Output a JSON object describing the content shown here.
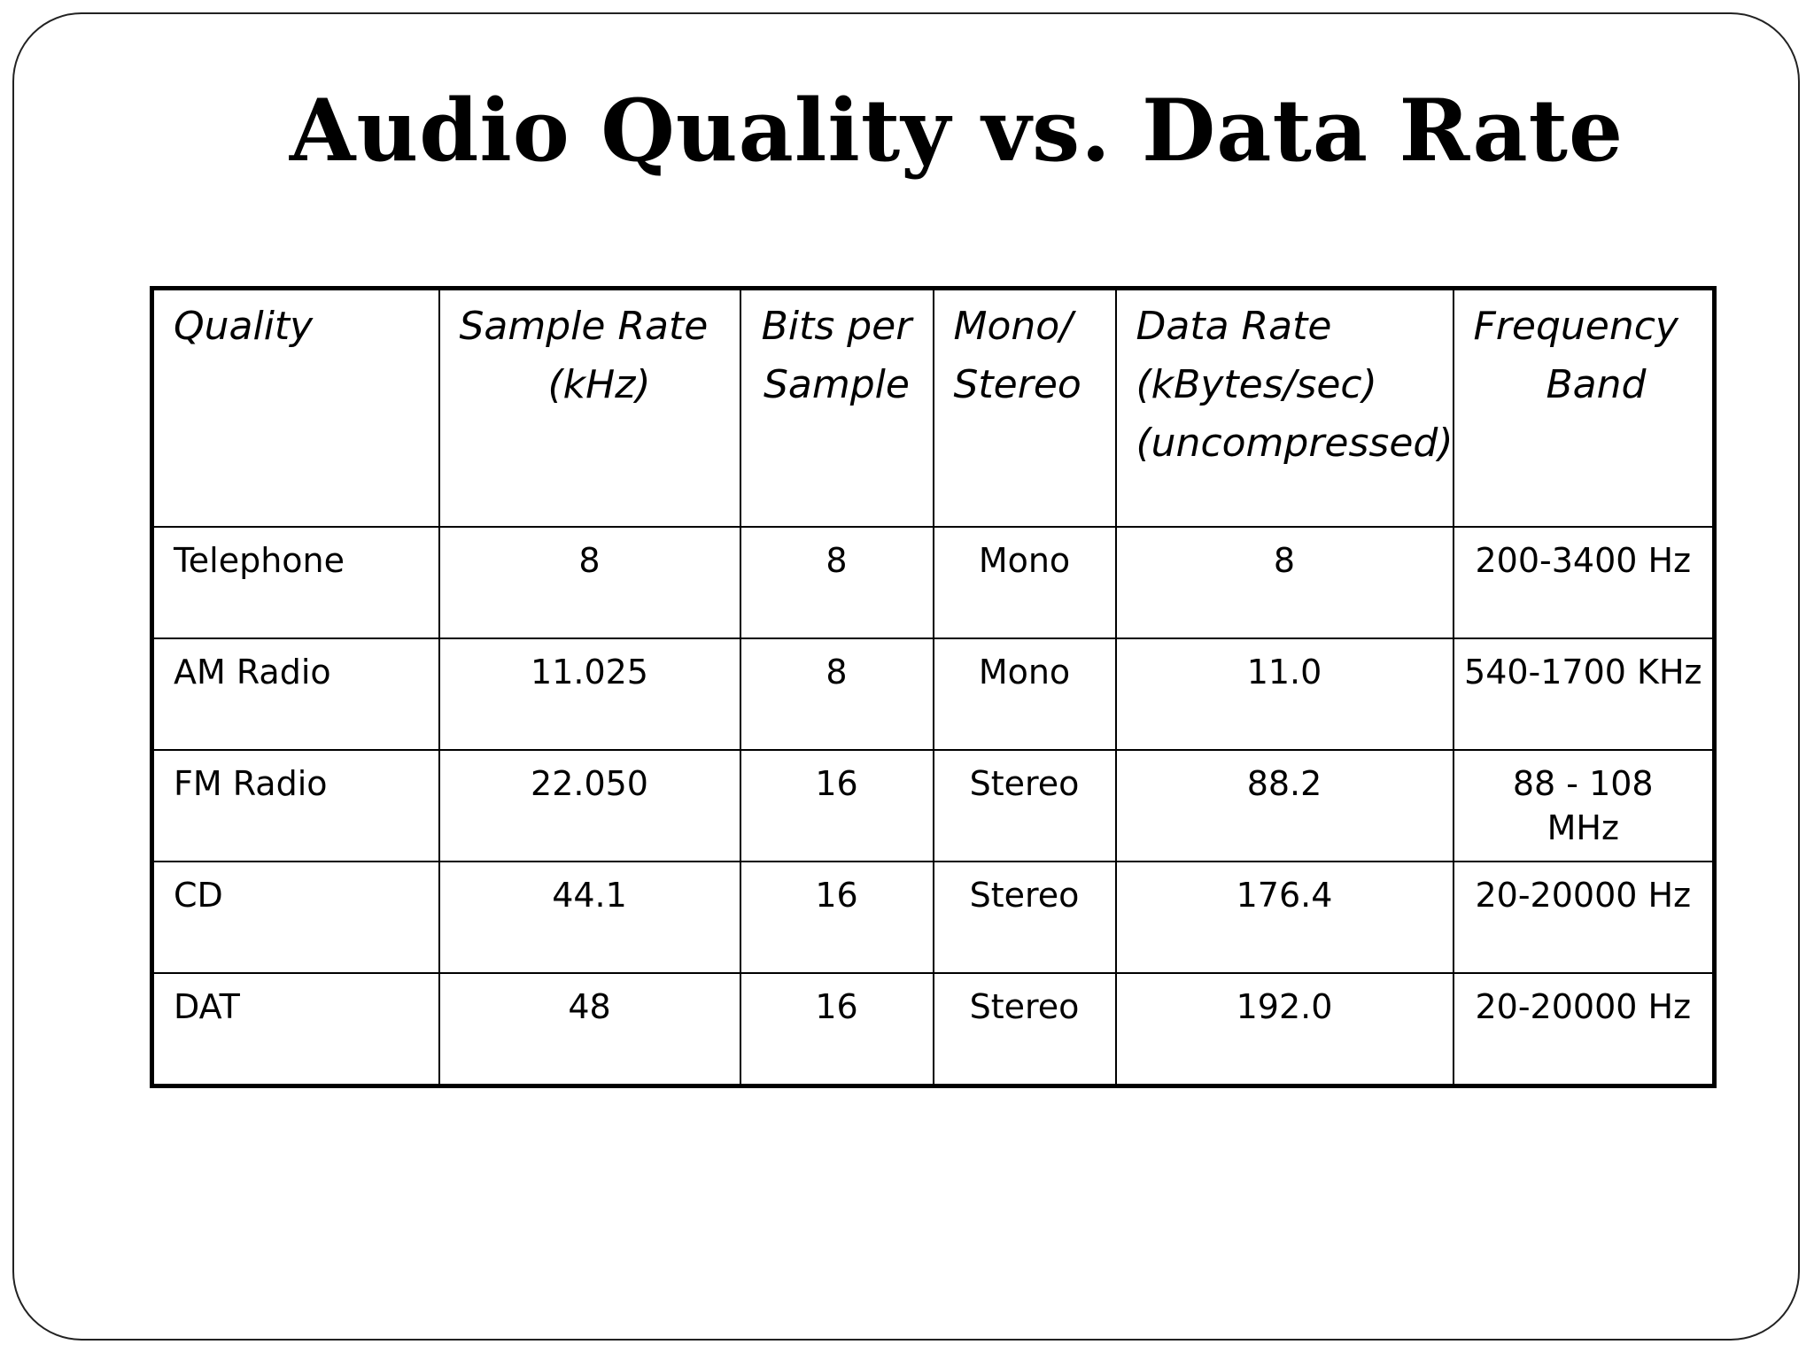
{
  "slide": {
    "title": "Audio Quality vs. Data Rate"
  },
  "table": {
    "headers": [
      {
        "lines": [
          "Quality"
        ]
      },
      {
        "lines": [
          "Sample Rate",
          "(kHz)"
        ]
      },
      {
        "lines": [
          "Bits per",
          "Sample"
        ]
      },
      {
        "lines": [
          "Mono/",
          "Stereo"
        ]
      },
      {
        "lines": [
          "Data Rate",
          "(kBytes/sec)",
          "(uncompressed)"
        ]
      },
      {
        "lines": [
          "Frequency",
          "Band"
        ]
      }
    ],
    "rows": [
      {
        "quality": "Telephone",
        "sample_rate": "8",
        "bits": "8",
        "channels": "Mono",
        "data_rate": "8",
        "band": "200-3400 Hz"
      },
      {
        "quality": "AM Radio",
        "sample_rate": "11.025",
        "bits": "8",
        "channels": "Mono",
        "data_rate": "11.0",
        "band": "540-1700 KHz"
      },
      {
        "quality": "FM Radio",
        "sample_rate": "22.050",
        "bits": "16",
        "channels": "Stereo",
        "data_rate": "88.2",
        "band": "88 - 108 MHz"
      },
      {
        "quality": "CD",
        "sample_rate": "44.1",
        "bits": "16",
        "channels": "Stereo",
        "data_rate": "176.4",
        "band": "20-20000 Hz"
      },
      {
        "quality": "DAT",
        "sample_rate": "48",
        "bits": "16",
        "channels": "Stereo",
        "data_rate": "192.0",
        "band": "20-20000 Hz"
      }
    ]
  }
}
